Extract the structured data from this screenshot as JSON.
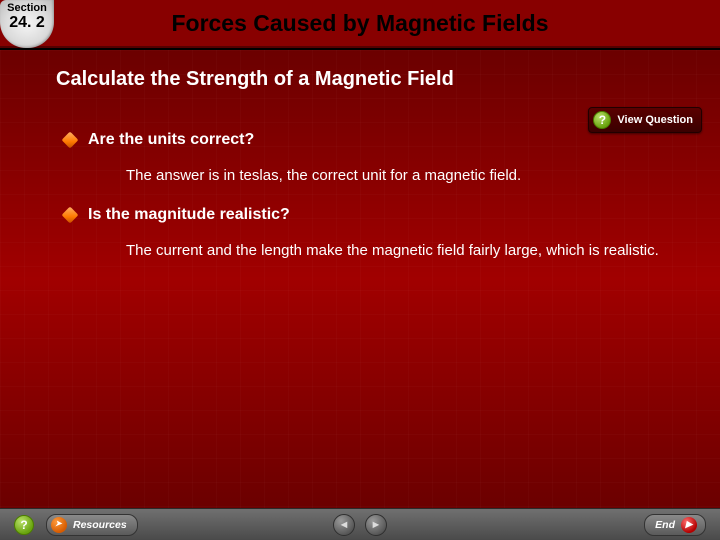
{
  "header": {
    "section_label": "Section",
    "section_number": "24. 2",
    "title": "Forces Caused by Magnetic Fields"
  },
  "content": {
    "subtitle": "Calculate the Strength of a Magnetic Field",
    "view_question_label": "View Question",
    "bullets": [
      {
        "question": "Are the units correct?",
        "answer": "The answer is in teslas, the correct unit for a magnetic field."
      },
      {
        "question": "Is the magnitude realistic?",
        "answer": "The current and the length make the magnetic field fairly large, which is realistic."
      }
    ]
  },
  "footer": {
    "resources_label": "Resources",
    "end_label": "End"
  },
  "colors": {
    "header_bg": "#880000",
    "content_gradient_top": "#6b0000",
    "content_gradient_mid": "#a10000",
    "bullet_orange": "#ff7a00",
    "help_green": "#6aa50f"
  }
}
